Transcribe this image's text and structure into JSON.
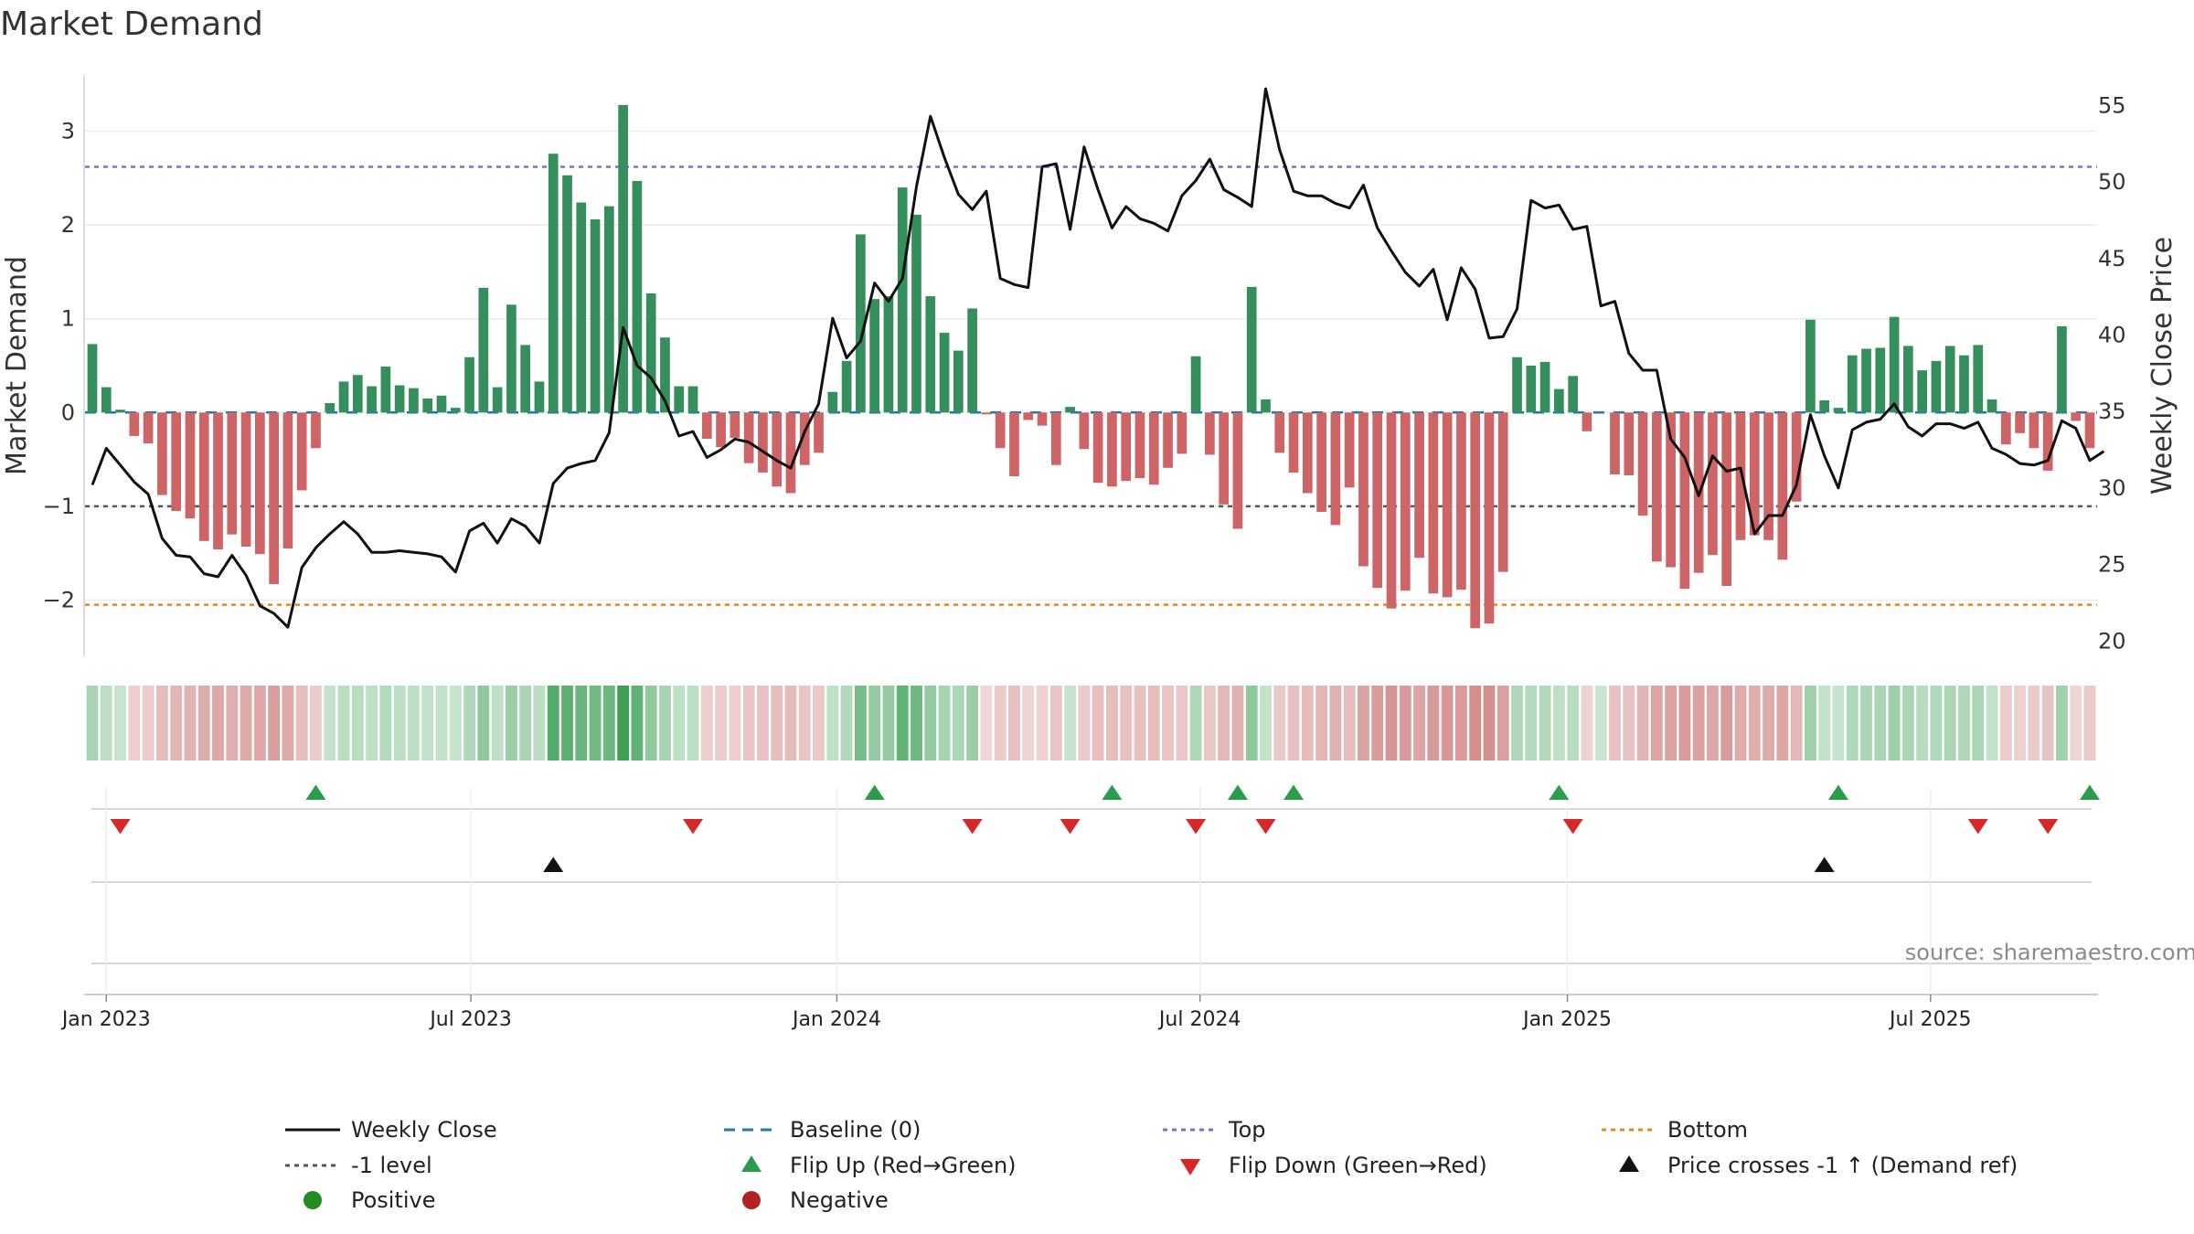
{
  "chart_data": {
    "type": "bar+line",
    "title": "Market Demand",
    "ylabel_left": "Market Demand",
    "ylabel_right": "Weekly Close Price",
    "ylim_left": [
      -2.6,
      3.6
    ],
    "ylim_right": [
      19,
      57
    ],
    "yticks_left": [
      3,
      2,
      1,
      0,
      -1,
      -2
    ],
    "yticks_left_labels": [
      "3",
      "2",
      "1",
      "0",
      "−1",
      "−2"
    ],
    "yticks_right": [
      55,
      50,
      45,
      40,
      35,
      30,
      25,
      20
    ],
    "yticks_right_labels": [
      "55",
      "50",
      "45",
      "40",
      "35",
      "30",
      "25",
      "20"
    ],
    "x_start": "2022-12-26",
    "x_end": "2025-09-29",
    "x_weeks": 145,
    "x_tick_weeks": [
      1,
      27.1,
      53.3,
      79.3,
      105.6,
      131.6
    ],
    "x_tick_labels": [
      "Jan 2023",
      "Jul 2023",
      "Jan 2024",
      "Jul 2024",
      "Jan 2025",
      "Jul 2025"
    ],
    "reference_lines": {
      "top": 2.62,
      "bottom": -2.05,
      "minus_one_level": -1.0,
      "baseline": 0
    },
    "demand": [
      0.73,
      0.27,
      0.03,
      -0.25,
      -0.33,
      -0.88,
      -1.05,
      -1.13,
      -1.37,
      -1.46,
      -1.3,
      -1.43,
      -1.51,
      -1.83,
      -1.45,
      -0.83,
      -0.38,
      0.1,
      0.33,
      0.4,
      0.28,
      0.49,
      0.29,
      0.26,
      0.15,
      0.18,
      0.05,
      0.59,
      1.33,
      0.27,
      1.15,
      0.72,
      0.33,
      2.76,
      2.53,
      2.24,
      2.06,
      2.2,
      3.28,
      2.47,
      1.27,
      0.8,
      0.28,
      0.28,
      -0.28,
      -0.37,
      -0.27,
      -0.54,
      -0.64,
      -0.79,
      -0.86,
      -0.56,
      -0.43,
      0.22,
      0.55,
      1.9,
      1.21,
      1.24,
      2.4,
      2.11,
      1.24,
      0.85,
      0.66,
      1.11,
      -0.02,
      -0.38,
      -0.68,
      -0.08,
      -0.14,
      -0.56,
      0.06,
      -0.39,
      -0.75,
      -0.79,
      -0.73,
      -0.7,
      -0.77,
      -0.59,
      -0.44,
      0.6,
      -0.45,
      -0.98,
      -1.24,
      1.34,
      0.14,
      -0.43,
      -0.64,
      -0.86,
      -1.06,
      -1.2,
      -0.8,
      -1.64,
      -1.87,
      -2.09,
      -1.9,
      -1.55,
      -1.93,
      -1.97,
      -1.89,
      -2.3,
      -2.25,
      -1.7,
      0.59,
      0.5,
      0.54,
      0.25,
      0.39,
      -0.2,
      0.0,
      -0.66,
      -0.67,
      -1.1,
      -1.59,
      -1.65,
      -1.88,
      -1.71,
      -1.52,
      -1.85,
      -1.36,
      -1.31,
      -1.36,
      -1.57,
      -0.95,
      0.99,
      0.13,
      0.05,
      0.61,
      0.68,
      0.69,
      1.02,
      0.71,
      0.45,
      0.55,
      0.71,
      0.61,
      0.72,
      0.14,
      -0.34,
      -0.22,
      -0.38,
      -0.62,
      0.92,
      -0.09,
      -0.38
    ],
    "weekly_close": [
      30.2,
      32.6,
      31.5,
      30.4,
      29.6,
      26.7,
      25.6,
      25.5,
      24.4,
      24.2,
      25.6,
      24.3,
      22.3,
      21.8,
      20.9,
      24.8,
      26.1,
      27.0,
      27.8,
      27.0,
      25.8,
      25.8,
      25.9,
      25.8,
      25.7,
      25.5,
      24.5,
      27.2,
      27.7,
      26.4,
      28.0,
      27.5,
      26.4,
      30.3,
      31.3,
      31.6,
      31.8,
      33.6,
      40.5,
      38.0,
      37.2,
      35.7,
      33.4,
      33.7,
      32.0,
      32.5,
      33.2,
      33.0,
      32.4,
      31.8,
      31.3,
      33.7,
      35.5,
      41.1,
      38.5,
      39.6,
      43.4,
      42.2,
      43.7,
      49.7,
      54.3,
      51.6,
      49.2,
      48.2,
      49.4,
      43.7,
      43.3,
      43.1,
      51.0,
      51.2,
      46.9,
      52.3,
      49.5,
      47.0,
      48.4,
      47.6,
      47.3,
      46.8,
      49.1,
      50.1,
      51.5,
      49.5,
      49.0,
      48.4,
      56.1,
      52.1,
      49.4,
      49.1,
      49.1,
      48.6,
      48.3,
      49.8,
      47.0,
      45.5,
      44.1,
      43.2,
      44.3,
      41.0,
      44.4,
      43.0,
      39.8,
      39.9,
      41.7,
      48.8,
      48.3,
      48.5,
      46.9,
      47.1,
      41.9,
      42.2,
      38.8,
      37.7,
      37.7,
      33.2,
      32.0,
      29.5,
      32.1,
      31.1,
      31.3,
      27.0,
      28.2,
      28.2,
      30.2,
      34.8,
      32.1,
      30.0,
      33.8,
      34.3,
      34.5,
      35.5,
      34.0,
      33.4,
      34.2,
      34.2,
      33.9,
      34.3,
      32.6,
      32.2,
      31.6,
      31.5,
      31.8,
      34.4,
      33.9,
      31.8,
      32.4
    ],
    "flip_up_weeks": [
      16,
      56,
      73,
      82,
      86,
      105,
      125,
      143
    ],
    "flip_down_weeks": [
      2,
      43,
      63,
      70,
      79,
      84,
      106,
      135,
      140
    ],
    "price_cross_weeks": [
      33,
      124
    ],
    "source": "source: sharemaestro.com",
    "legend": [
      {
        "label": "Weekly Close",
        "marker": "line-solid",
        "color": "#111111"
      },
      {
        "label": "Baseline (0)",
        "marker": "line-dashed",
        "color": "#1f77b4"
      },
      {
        "label": "Top",
        "marker": "line-dotted",
        "color": "#7b6fd0"
      },
      {
        "label": "Bottom",
        "marker": "line-dotted",
        "color": "#e08a1e"
      },
      {
        "label": "-1 level",
        "marker": "line-dotted",
        "color": "#555555"
      },
      {
        "label": "Flip Up (Red→Green)",
        "marker": "triangle-up",
        "color": "#2a9d4a"
      },
      {
        "label": "Flip Down (Green→Red)",
        "marker": "triangle-down",
        "color": "#d62828"
      },
      {
        "label": "Price crosses -1 ↑ (Demand ref)",
        "marker": "triangle-up",
        "color": "#111111"
      },
      {
        "label": "Positive",
        "marker": "circle",
        "color": "#228b22"
      },
      {
        "label": "Negative",
        "marker": "circle",
        "color": "#b22222"
      }
    ],
    "colors": {
      "positive_bar": "#358f5c",
      "negative_bar": "#cd6466",
      "price_line": "#111111",
      "baseline": "#1f77b4",
      "top": "#7b6fd0",
      "bottom": "#e08a1e",
      "minus_one": "#555555",
      "flip_up": "#2a9d4a",
      "flip_down": "#d62828",
      "price_cross": "#111111",
      "heat_positive_rgb": [
        60,
        160,
        85
      ],
      "heat_negative_rgb": [
        190,
        85,
        85
      ]
    }
  }
}
